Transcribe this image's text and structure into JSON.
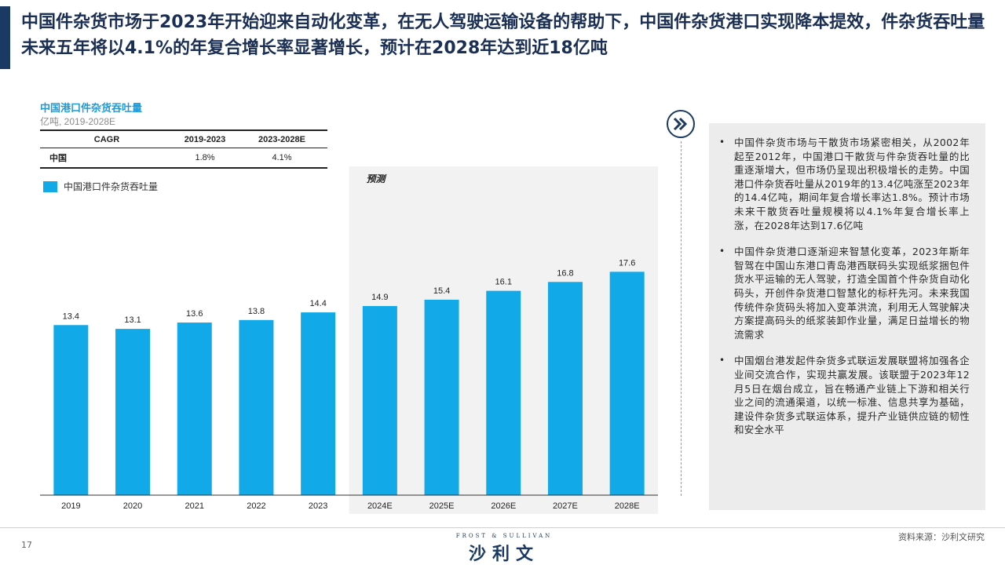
{
  "page": {
    "title": "中国件杂货市场于2023年开始迎来自动化变革，在无人驾驶运输设备的帮助下，中国件杂货港口实现降本提效，件杂货吞吐量未来五年将以4.1%的年复合增长率显著增长，预计在2028年达到近18亿吨",
    "page_number": "17",
    "source": "资料来源：沙利文研究",
    "brand_top": "FROST & SULLIVAN",
    "brand_main": "沙利文"
  },
  "cagr_table": {
    "headers": [
      "CAGR",
      "2019-2023",
      "2023-2028E"
    ],
    "rows": [
      {
        "region": "中国",
        "v1": "1.8%",
        "v2": "4.1%"
      }
    ]
  },
  "side_panel": {
    "bullets": [
      "中国件杂货市场与干散货市场紧密相关，从2002年起至2012年，中国港口干散货与件杂货吞吐量的比重逐渐增大，但市场仍呈现出积极增长的走势。中国港口件杂货吞吐量从2019年的13.4亿吨涨至2023年的14.4亿吨，期间年复合增长率达1.8%。预计市场未来干散货吞吐量规模将以4.1%年复合增长率上涨，在2028年达到17.6亿吨",
      "中国件杂货港口逐渐迎来智慧化变革，2023年斯年智驾在中国山东港口青岛港西联码头实现纸浆捆包件货水平运输的无人驾驶，打造全国首个件杂货自动化码头，开创件杂货港口智慧化的标杆先河。未来我国传统件杂货码头将加入变革洪流，利用无人驾驶解决方案提高码头的纸浆装卸作业量，满足日益增长的物流需求",
      "中国烟台港发起件杂货多式联运发展联盟将加强各企业间交流合作，实现共赢发展。该联盟于2023年12月5日在烟台成立，旨在畅通产业链上下游和相关行业之间的流通渠道，以统一标准、信息共享为基础，建设件杂货多式联运体系，提升产业链供应链的韧性和安全水平"
    ]
  },
  "colors": {
    "bar": "#12a9e8",
    "accent": "#1f9ad6",
    "title": "#1b2f55",
    "forecast_bg": "#f2f2f2"
  },
  "chart_data": {
    "type": "bar",
    "title": "中国港口件杂货吞吐量",
    "subtitle": "亿吨, 2019-2028E",
    "categories": [
      "2019",
      "2020",
      "2021",
      "2022",
      "2023",
      "2024E",
      "2025E",
      "2026E",
      "2027E",
      "2028E"
    ],
    "series": [
      {
        "name": "中国港口件杂货吞吐量",
        "values": [
          13.4,
          13.1,
          13.6,
          13.8,
          14.4,
          14.9,
          15.4,
          16.1,
          16.8,
          17.6
        ]
      }
    ],
    "data_labels": [
      "13.4",
      "13.1",
      "13.6",
      "13.8",
      "14.4",
      "14.9",
      "15.4",
      "16.1",
      "16.8",
      "17.6"
    ],
    "forecast_label": "预测",
    "forecast_start_index": 5,
    "ylim": [
      0,
      23
    ]
  }
}
